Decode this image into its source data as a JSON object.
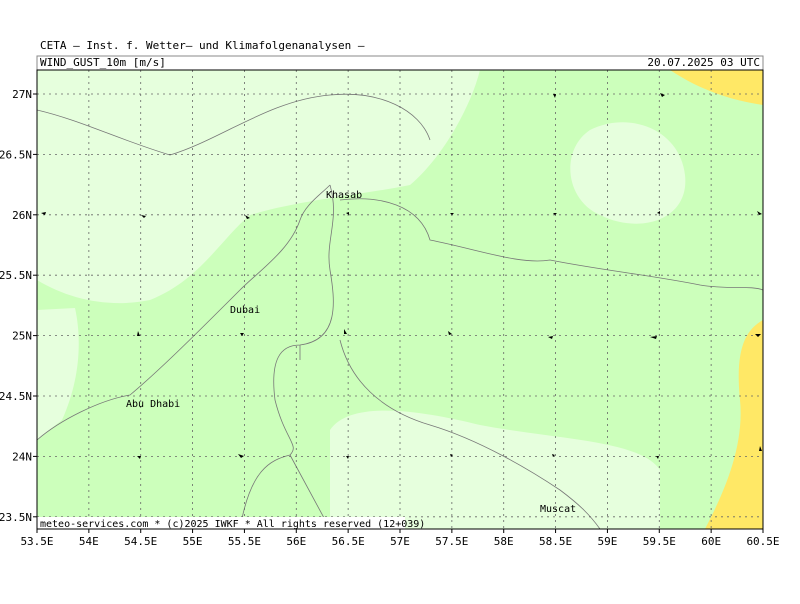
{
  "header": {
    "title": "CETA — Inst. f. Wetter— und Klimafolgenanalysen —",
    "parameter": "WIND_GUST_10m [m/s]",
    "datetime": "20.07.2025 03 UTC"
  },
  "map": {
    "x_labels": [
      "53.5E",
      "54E",
      "54.5E",
      "55E",
      "55.5E",
      "56E",
      "56.5E",
      "57E",
      "57.5E",
      "58E",
      "58.5E",
      "59E",
      "59.5E",
      "60E",
      "60.5E"
    ],
    "y_labels": [
      "27N",
      "26.5N",
      "26N",
      "25.5N",
      "25N",
      "24.5N",
      "24N",
      "23.5N"
    ],
    "places": [
      "Khasab",
      "Dubai",
      "Abu Dhabi",
      "Muscat"
    ]
  },
  "footer": "meteo-services.com * (c)2025 IWKF * All rights reserved (12+039)"
}
